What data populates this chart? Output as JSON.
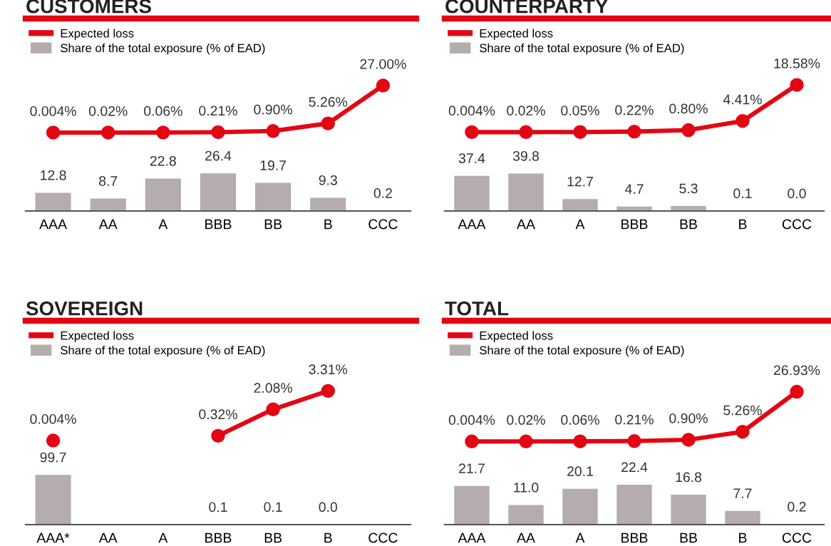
{
  "chart_data": [
    {
      "type": "bar",
      "title": "CUSTOMERS",
      "ylim": [
        0,
        132
      ],
      "y2lim": [
        -45,
        63
      ],
      "categories": [
        "AAA",
        "AA",
        "A",
        "BBB",
        "BB",
        "B",
        "CCC"
      ],
      "legend": "top left",
      "marker": "circle",
      "series": [
        {
          "name": "Expected loss",
          "type": "line",
          "axis": "y2",
          "color": "#e30613",
          "values": [
            0.004,
            0.02,
            0.06,
            0.21,
            0.9,
            5.26,
            27.0
          ],
          "value_labels": [
            "0.004%",
            "0.02%",
            "0.06%",
            "0.21%",
            "0.90%",
            "5.26%",
            "27.00%"
          ]
        },
        {
          "name": "Share of the total exposure (% of EAD)",
          "color": "#b5acad",
          "values": [
            12.8,
            8.7,
            22.8,
            26.4,
            19.7,
            9.3,
            0.2
          ],
          "value_labels": [
            "12.8",
            "8.7",
            "22.8",
            "26.4",
            "19.7",
            "9.3",
            "0.2"
          ]
        }
      ]
    },
    {
      "type": "bar",
      "title": "COUNTERPARTY",
      "ylim": [
        0,
        200
      ],
      "y2lim": [
        -31,
        43
      ],
      "categories": [
        "AAA",
        "AA",
        "A",
        "BBB",
        "BB",
        "B",
        "CCC"
      ],
      "legend": "top left",
      "marker": "circle",
      "series": [
        {
          "name": "Expected loss",
          "type": "line",
          "axis": "y2",
          "color": "#e30613",
          "values": [
            0.004,
            0.02,
            0.05,
            0.22,
            0.8,
            4.41,
            18.58
          ],
          "value_labels": [
            "0.004%",
            "0.02%",
            "0.05%",
            "0.22%",
            "0.80%",
            "4.41%",
            "18.58%"
          ]
        },
        {
          "name": "Share of the total exposure (% of EAD)",
          "color": "#b5acad",
          "values": [
            37.4,
            39.8,
            12.7,
            4.7,
            5.3,
            0.1,
            0.0
          ],
          "value_labels": [
            "37.4",
            "39.8",
            "12.7",
            "4.7",
            "5.3",
            "0.1",
            "0.0"
          ]
        }
      ]
    },
    {
      "type": "bar",
      "title": "SOVEREIGN",
      "ylim": [
        0,
        400
      ],
      "y2lim": [
        -5.6,
        7.7
      ],
      "categories": [
        "AAA*",
        "AA",
        "A",
        "BBB",
        "BB",
        "B",
        "CCC"
      ],
      "legend": "top left",
      "marker": "circle",
      "series": [
        {
          "name": "Expected loss",
          "type": "line",
          "axis": "y2",
          "color": "#e30613",
          "values": [
            0.004,
            null,
            null,
            0.32,
            2.08,
            3.31,
            null
          ],
          "value_labels": [
            "0.004%",
            null,
            null,
            "0.32%",
            "2.08%",
            "3.31%",
            null
          ]
        },
        {
          "name": "Share of the total exposure (% of EAD)",
          "color": "#b5acad",
          "values": [
            99.7,
            null,
            null,
            0.1,
            0.1,
            0.0,
            null
          ],
          "value_labels": [
            "99.7",
            null,
            null,
            "0.1",
            "0.1",
            "0.0",
            null
          ]
        }
      ]
    },
    {
      "type": "bar",
      "title": "TOTAL",
      "ylim": [
        0,
        112
      ],
      "y2lim": [
        -45,
        63
      ],
      "categories": [
        "AAA",
        "AA",
        "A",
        "BBB",
        "BB",
        "B",
        "CCC"
      ],
      "legend": "top left",
      "marker": "circle",
      "series": [
        {
          "name": "Expected loss",
          "type": "line",
          "axis": "y2",
          "color": "#e30613",
          "values": [
            0.004,
            0.02,
            0.06,
            0.21,
            0.9,
            5.26,
            26.93
          ],
          "value_labels": [
            "0.004%",
            "0.02%",
            "0.06%",
            "0.21%",
            "0.90%",
            "5.26%",
            "26.93%"
          ]
        },
        {
          "name": "Share of the total exposure (% of EAD)",
          "color": "#b5acad",
          "values": [
            21.7,
            11.0,
            20.1,
            22.4,
            16.8,
            7.7,
            0.2
          ],
          "value_labels": [
            "21.7",
            "11.0",
            "20.1",
            "22.4",
            "16.8",
            "7.7",
            "0.2"
          ]
        }
      ]
    }
  ]
}
